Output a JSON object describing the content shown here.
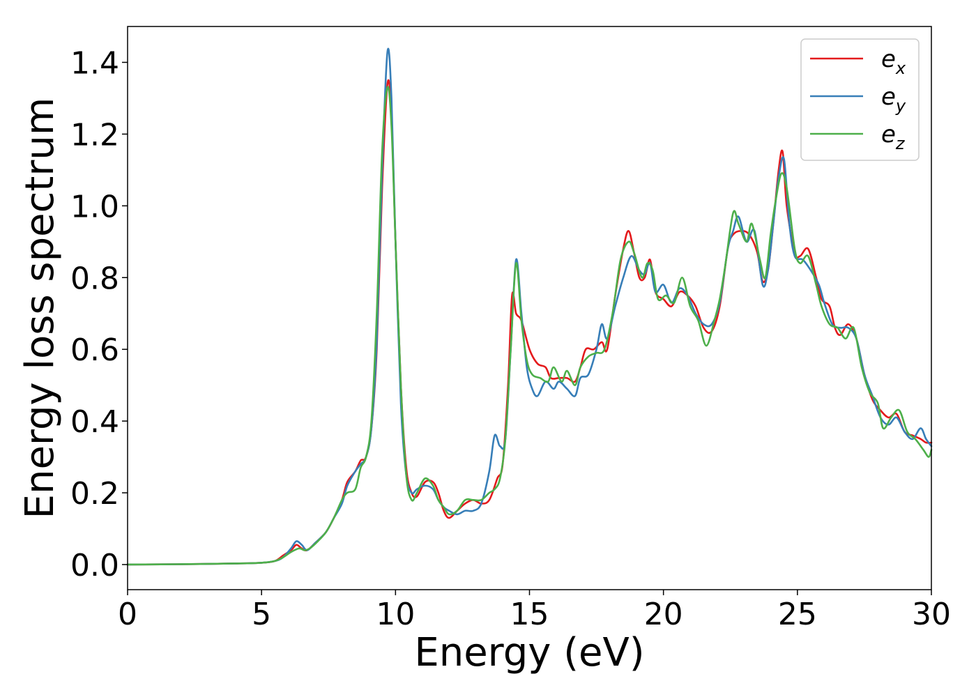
{
  "chart_data": {
    "type": "line",
    "xlabel": "Energy (eV)",
    "ylabel": "Energy loss spectrum",
    "xlim": [
      0,
      30
    ],
    "ylim": [
      -0.07,
      1.5
    ],
    "x_ticks": [
      0,
      5,
      10,
      15,
      20,
      25,
      30
    ],
    "x_tick_labels": [
      "0",
      "5",
      "10",
      "15",
      "20",
      "25",
      "30"
    ],
    "y_ticks": [
      0.0,
      0.2,
      0.4,
      0.6,
      0.8,
      1.0,
      1.2,
      1.4
    ],
    "y_tick_labels": [
      "0.0",
      "0.2",
      "0.4",
      "0.6",
      "0.8",
      "1.0",
      "1.2",
      "1.4"
    ],
    "grid": false,
    "legend_position": "top-right",
    "series": [
      {
        "name": "e_x",
        "label_base": "e",
        "label_sub": "x",
        "color": "#e41a1c",
        "points": [
          [
            0,
            0.0
          ],
          [
            2,
            0.001
          ],
          [
            4,
            0.003
          ],
          [
            5,
            0.005
          ],
          [
            5.5,
            0.01
          ],
          [
            5.8,
            0.025
          ],
          [
            6.1,
            0.04
          ],
          [
            6.3,
            0.055
          ],
          [
            6.5,
            0.045
          ],
          [
            6.7,
            0.04
          ],
          [
            7.0,
            0.06
          ],
          [
            7.4,
            0.09
          ],
          [
            7.7,
            0.13
          ],
          [
            8.0,
            0.18
          ],
          [
            8.2,
            0.23
          ],
          [
            8.5,
            0.26
          ],
          [
            8.7,
            0.29
          ],
          [
            8.9,
            0.3
          ],
          [
            9.1,
            0.38
          ],
          [
            9.3,
            0.6
          ],
          [
            9.5,
            1.05
          ],
          [
            9.7,
            1.34
          ],
          [
            9.85,
            1.25
          ],
          [
            10.0,
            0.9
          ],
          [
            10.2,
            0.5
          ],
          [
            10.4,
            0.27
          ],
          [
            10.6,
            0.2
          ],
          [
            10.8,
            0.19
          ],
          [
            11.1,
            0.23
          ],
          [
            11.4,
            0.23
          ],
          [
            11.6,
            0.2
          ],
          [
            11.8,
            0.15
          ],
          [
            12.0,
            0.13
          ],
          [
            12.3,
            0.15
          ],
          [
            12.6,
            0.17
          ],
          [
            12.9,
            0.18
          ],
          [
            13.2,
            0.17
          ],
          [
            13.5,
            0.18
          ],
          [
            13.8,
            0.24
          ],
          [
            14.0,
            0.28
          ],
          [
            14.2,
            0.5
          ],
          [
            14.35,
            0.75
          ],
          [
            14.5,
            0.7
          ],
          [
            14.7,
            0.68
          ],
          [
            15.0,
            0.6
          ],
          [
            15.3,
            0.56
          ],
          [
            15.6,
            0.55
          ],
          [
            15.8,
            0.52
          ],
          [
            16.1,
            0.52
          ],
          [
            16.4,
            0.52
          ],
          [
            16.7,
            0.51
          ],
          [
            16.9,
            0.55
          ],
          [
            17.1,
            0.6
          ],
          [
            17.4,
            0.6
          ],
          [
            17.7,
            0.62
          ],
          [
            17.9,
            0.6
          ],
          [
            18.2,
            0.75
          ],
          [
            18.5,
            0.88
          ],
          [
            18.7,
            0.93
          ],
          [
            18.9,
            0.87
          ],
          [
            19.1,
            0.8
          ],
          [
            19.3,
            0.8
          ],
          [
            19.5,
            0.85
          ],
          [
            19.7,
            0.76
          ],
          [
            20.0,
            0.74
          ],
          [
            20.3,
            0.72
          ],
          [
            20.6,
            0.76
          ],
          [
            20.9,
            0.75
          ],
          [
            21.2,
            0.72
          ],
          [
            21.5,
            0.66
          ],
          [
            21.8,
            0.65
          ],
          [
            22.1,
            0.72
          ],
          [
            22.4,
            0.88
          ],
          [
            22.6,
            0.92
          ],
          [
            22.9,
            0.93
          ],
          [
            23.2,
            0.92
          ],
          [
            23.5,
            0.87
          ],
          [
            23.7,
            0.79
          ],
          [
            23.9,
            0.82
          ],
          [
            24.1,
            0.95
          ],
          [
            24.3,
            1.1
          ],
          [
            24.45,
            1.15
          ],
          [
            24.6,
            1.0
          ],
          [
            24.9,
            0.87
          ],
          [
            25.1,
            0.86
          ],
          [
            25.4,
            0.88
          ],
          [
            25.7,
            0.8
          ],
          [
            25.9,
            0.74
          ],
          [
            26.2,
            0.72
          ],
          [
            26.4,
            0.66
          ],
          [
            26.6,
            0.64
          ],
          [
            26.9,
            0.67
          ],
          [
            27.2,
            0.63
          ],
          [
            27.5,
            0.53
          ],
          [
            27.8,
            0.46
          ],
          [
            28.1,
            0.43
          ],
          [
            28.4,
            0.41
          ],
          [
            28.7,
            0.42
          ],
          [
            29.0,
            0.37
          ],
          [
            29.3,
            0.36
          ],
          [
            29.6,
            0.35
          ],
          [
            29.8,
            0.34
          ],
          [
            30.0,
            0.34
          ]
        ]
      },
      {
        "name": "e_y",
        "label_base": "e",
        "label_sub": "y",
        "color": "#377eb8",
        "points": [
          [
            0,
            0.0
          ],
          [
            2,
            0.001
          ],
          [
            4,
            0.003
          ],
          [
            5,
            0.005
          ],
          [
            5.5,
            0.01
          ],
          [
            5.8,
            0.02
          ],
          [
            6.1,
            0.045
          ],
          [
            6.3,
            0.065
          ],
          [
            6.5,
            0.055
          ],
          [
            6.7,
            0.04
          ],
          [
            7.0,
            0.06
          ],
          [
            7.4,
            0.09
          ],
          [
            7.7,
            0.13
          ],
          [
            8.0,
            0.17
          ],
          [
            8.2,
            0.22
          ],
          [
            8.5,
            0.26
          ],
          [
            8.7,
            0.28
          ],
          [
            8.9,
            0.3
          ],
          [
            9.1,
            0.38
          ],
          [
            9.3,
            0.62
          ],
          [
            9.5,
            1.1
          ],
          [
            9.7,
            1.43
          ],
          [
            9.85,
            1.3
          ],
          [
            10.0,
            0.9
          ],
          [
            10.2,
            0.45
          ],
          [
            10.4,
            0.25
          ],
          [
            10.6,
            0.2
          ],
          [
            10.8,
            0.21
          ],
          [
            11.1,
            0.22
          ],
          [
            11.4,
            0.21
          ],
          [
            11.6,
            0.18
          ],
          [
            11.8,
            0.16
          ],
          [
            12.0,
            0.15
          ],
          [
            12.3,
            0.14
          ],
          [
            12.6,
            0.15
          ],
          [
            12.9,
            0.15
          ],
          [
            13.2,
            0.17
          ],
          [
            13.5,
            0.26
          ],
          [
            13.7,
            0.36
          ],
          [
            13.9,
            0.33
          ],
          [
            14.1,
            0.35
          ],
          [
            14.3,
            0.6
          ],
          [
            14.5,
            0.85
          ],
          [
            14.7,
            0.7
          ],
          [
            14.9,
            0.55
          ],
          [
            15.1,
            0.49
          ],
          [
            15.3,
            0.47
          ],
          [
            15.6,
            0.51
          ],
          [
            15.9,
            0.49
          ],
          [
            16.1,
            0.51
          ],
          [
            16.4,
            0.49
          ],
          [
            16.7,
            0.47
          ],
          [
            16.9,
            0.52
          ],
          [
            17.2,
            0.53
          ],
          [
            17.5,
            0.6
          ],
          [
            17.7,
            0.67
          ],
          [
            17.9,
            0.63
          ],
          [
            18.2,
            0.72
          ],
          [
            18.5,
            0.8
          ],
          [
            18.8,
            0.86
          ],
          [
            19.1,
            0.82
          ],
          [
            19.3,
            0.81
          ],
          [
            19.5,
            0.84
          ],
          [
            19.7,
            0.76
          ],
          [
            20.0,
            0.78
          ],
          [
            20.3,
            0.73
          ],
          [
            20.6,
            0.77
          ],
          [
            20.9,
            0.75
          ],
          [
            21.2,
            0.7
          ],
          [
            21.5,
            0.67
          ],
          [
            21.8,
            0.67
          ],
          [
            22.1,
            0.73
          ],
          [
            22.4,
            0.88
          ],
          [
            22.6,
            0.93
          ],
          [
            22.8,
            0.97
          ],
          [
            23.1,
            0.9
          ],
          [
            23.4,
            0.93
          ],
          [
            23.7,
            0.78
          ],
          [
            23.9,
            0.82
          ],
          [
            24.1,
            0.95
          ],
          [
            24.3,
            1.08
          ],
          [
            24.5,
            1.13
          ],
          [
            24.7,
            0.95
          ],
          [
            24.9,
            0.86
          ],
          [
            25.2,
            0.85
          ],
          [
            25.5,
            0.82
          ],
          [
            25.8,
            0.78
          ],
          [
            26.0,
            0.73
          ],
          [
            26.3,
            0.67
          ],
          [
            26.6,
            0.66
          ],
          [
            26.9,
            0.66
          ],
          [
            27.2,
            0.63
          ],
          [
            27.5,
            0.53
          ],
          [
            27.8,
            0.47
          ],
          [
            28.1,
            0.41
          ],
          [
            28.4,
            0.39
          ],
          [
            28.7,
            0.41
          ],
          [
            29.0,
            0.37
          ],
          [
            29.3,
            0.35
          ],
          [
            29.6,
            0.38
          ],
          [
            29.8,
            0.35
          ],
          [
            30.0,
            0.33
          ]
        ]
      },
      {
        "name": "e_z",
        "label_base": "e",
        "label_sub": "z",
        "color": "#4daf4a",
        "points": [
          [
            0,
            0.0
          ],
          [
            2,
            0.001
          ],
          [
            4,
            0.003
          ],
          [
            5,
            0.005
          ],
          [
            5.5,
            0.01
          ],
          [
            5.8,
            0.02
          ],
          [
            6.1,
            0.035
          ],
          [
            6.4,
            0.045
          ],
          [
            6.6,
            0.04
          ],
          [
            6.8,
            0.045
          ],
          [
            7.1,
            0.065
          ],
          [
            7.4,
            0.09
          ],
          [
            7.7,
            0.13
          ],
          [
            8.0,
            0.18
          ],
          [
            8.2,
            0.2
          ],
          [
            8.5,
            0.21
          ],
          [
            8.7,
            0.27
          ],
          [
            8.9,
            0.3
          ],
          [
            9.1,
            0.4
          ],
          [
            9.3,
            0.7
          ],
          [
            9.5,
            1.15
          ],
          [
            9.7,
            1.33
          ],
          [
            9.85,
            1.22
          ],
          [
            10.0,
            0.9
          ],
          [
            10.2,
            0.5
          ],
          [
            10.4,
            0.25
          ],
          [
            10.6,
            0.18
          ],
          [
            10.8,
            0.2
          ],
          [
            11.1,
            0.24
          ],
          [
            11.4,
            0.22
          ],
          [
            11.6,
            0.18
          ],
          [
            11.8,
            0.16
          ],
          [
            12.0,
            0.14
          ],
          [
            12.3,
            0.15
          ],
          [
            12.6,
            0.18
          ],
          [
            12.9,
            0.18
          ],
          [
            13.2,
            0.18
          ],
          [
            13.5,
            0.2
          ],
          [
            13.7,
            0.21
          ],
          [
            13.9,
            0.24
          ],
          [
            14.1,
            0.35
          ],
          [
            14.3,
            0.6
          ],
          [
            14.5,
            0.84
          ],
          [
            14.7,
            0.68
          ],
          [
            14.9,
            0.57
          ],
          [
            15.1,
            0.53
          ],
          [
            15.4,
            0.52
          ],
          [
            15.7,
            0.51
          ],
          [
            15.9,
            0.55
          ],
          [
            16.2,
            0.51
          ],
          [
            16.4,
            0.54
          ],
          [
            16.7,
            0.5
          ],
          [
            16.9,
            0.55
          ],
          [
            17.2,
            0.58
          ],
          [
            17.5,
            0.59
          ],
          [
            17.8,
            0.6
          ],
          [
            18.1,
            0.7
          ],
          [
            18.4,
            0.85
          ],
          [
            18.7,
            0.9
          ],
          [
            18.9,
            0.87
          ],
          [
            19.2,
            0.8
          ],
          [
            19.4,
            0.84
          ],
          [
            19.6,
            0.82
          ],
          [
            19.8,
            0.74
          ],
          [
            20.1,
            0.75
          ],
          [
            20.4,
            0.73
          ],
          [
            20.7,
            0.8
          ],
          [
            21.0,
            0.72
          ],
          [
            21.3,
            0.68
          ],
          [
            21.6,
            0.61
          ],
          [
            21.9,
            0.68
          ],
          [
            22.1,
            0.74
          ],
          [
            22.3,
            0.83
          ],
          [
            22.6,
            0.98
          ],
          [
            22.8,
            0.95
          ],
          [
            23.1,
            0.9
          ],
          [
            23.3,
            0.95
          ],
          [
            23.6,
            0.85
          ],
          [
            23.8,
            0.8
          ],
          [
            24.0,
            0.92
          ],
          [
            24.2,
            1.02
          ],
          [
            24.4,
            1.09
          ],
          [
            24.6,
            1.05
          ],
          [
            24.9,
            0.88
          ],
          [
            25.1,
            0.84
          ],
          [
            25.4,
            0.86
          ],
          [
            25.7,
            0.78
          ],
          [
            25.9,
            0.72
          ],
          [
            26.2,
            0.67
          ],
          [
            26.5,
            0.66
          ],
          [
            26.8,
            0.63
          ],
          [
            27.1,
            0.66
          ],
          [
            27.4,
            0.55
          ],
          [
            27.7,
            0.48
          ],
          [
            28.0,
            0.45
          ],
          [
            28.2,
            0.38
          ],
          [
            28.5,
            0.41
          ],
          [
            28.8,
            0.43
          ],
          [
            29.1,
            0.37
          ],
          [
            29.4,
            0.35
          ],
          [
            29.7,
            0.32
          ],
          [
            29.9,
            0.3
          ],
          [
            30.0,
            0.32
          ]
        ]
      }
    ]
  }
}
